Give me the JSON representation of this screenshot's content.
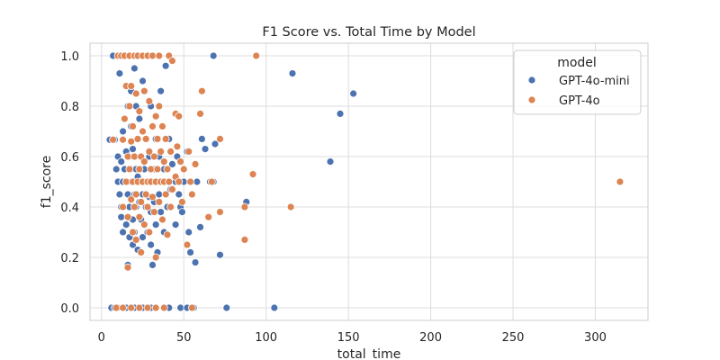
{
  "chart_data": {
    "type": "scatter",
    "title": "F1 Score vs. Total Time by Model",
    "xlabel": "total_time",
    "ylabel": "f1_score",
    "xlim": [
      -7,
      332
    ],
    "ylim": [
      -0.05,
      1.05
    ],
    "xticks": [
      "0",
      "50",
      "100",
      "150",
      "200",
      "250",
      "300"
    ],
    "yticks": [
      "0.0",
      "0.2",
      "0.4",
      "0.6",
      "0.8",
      "1.0"
    ],
    "grid": true,
    "legend": {
      "title": "model",
      "placement": "top-right"
    },
    "series": [
      {
        "name": "GPT-4o-mini",
        "color": "#4c72b0",
        "points": [
          [
            5,
            0.667
          ],
          [
            7,
            1.0
          ],
          [
            8,
            0.667
          ],
          [
            9,
            0.55
          ],
          [
            10,
            0.5
          ],
          [
            10,
            0.6
          ],
          [
            11,
            0.45
          ],
          [
            11,
            0.93
          ],
          [
            12,
            0.58
          ],
          [
            12,
            0.4
          ],
          [
            12,
            0.36
          ],
          [
            13,
            0.3
          ],
          [
            13,
            0.5
          ],
          [
            13,
            0.7
          ],
          [
            14,
            0.55
          ],
          [
            14,
            0.75
          ],
          [
            15,
            0.5
          ],
          [
            15,
            0.33
          ],
          [
            15,
            0.62
          ],
          [
            16,
            0.17
          ],
          [
            16,
            0.45
          ],
          [
            16,
            0.8
          ],
          [
            17,
            0.4
          ],
          [
            17,
            0.6
          ],
          [
            17,
            0.28
          ],
          [
            18,
            0.5
          ],
          [
            18,
            0.55
          ],
          [
            18,
            0.72
          ],
          [
            18,
            0.86
          ],
          [
            19,
            0.35
          ],
          [
            19,
            0.63
          ],
          [
            19,
            0.25
          ],
          [
            20,
            0.45
          ],
          [
            20,
            0.5
          ],
          [
            20,
            0.3
          ],
          [
            20,
            0.95
          ],
          [
            21,
            0.55
          ],
          [
            21,
            0.8
          ],
          [
            21,
            0.4
          ],
          [
            22,
            0.23
          ],
          [
            22,
            0.52
          ],
          [
            22,
            0.67
          ],
          [
            23,
            0.5
          ],
          [
            23,
            0.42
          ],
          [
            23,
            0.75
          ],
          [
            24,
            0.35
          ],
          [
            24,
            0.6
          ],
          [
            25,
            0.45
          ],
          [
            25,
            0.28
          ],
          [
            25,
            0.9
          ],
          [
            26,
            0.5
          ],
          [
            26,
            0.55
          ],
          [
            27,
            0.4
          ],
          [
            27,
            0.67
          ],
          [
            28,
            0.3
          ],
          [
            28,
            0.5
          ],
          [
            29,
            0.44
          ],
          [
            29,
            0.6
          ],
          [
            30,
            0.38
          ],
          [
            30,
            0.25
          ],
          [
            30,
            0.8
          ],
          [
            31,
            0.5
          ],
          [
            31,
            0.17
          ],
          [
            32,
            0.55
          ],
          [
            32,
            0.42
          ],
          [
            33,
            0.33
          ],
          [
            33,
            0.67
          ],
          [
            34,
            0.5
          ],
          [
            34,
            0.22
          ],
          [
            35,
            0.45
          ],
          [
            35,
            0.6
          ],
          [
            36,
            0.86
          ],
          [
            36,
            0.38
          ],
          [
            37,
            0.5
          ],
          [
            38,
            0.55
          ],
          [
            38,
            0.3
          ],
          [
            39,
            0.96
          ],
          [
            40,
            0.5
          ],
          [
            40,
            0.4
          ],
          [
            41,
            0.67
          ],
          [
            42,
            0.47
          ],
          [
            43,
            0.57
          ],
          [
            45,
            0.5
          ],
          [
            45,
            0.33
          ],
          [
            46,
            0.6
          ],
          [
            47,
            0.45
          ],
          [
            48,
            0.4
          ],
          [
            49,
            0.38
          ],
          [
            50,
            0.5
          ],
          [
            52,
            0.62
          ],
          [
            53,
            0.3
          ],
          [
            54,
            0.22
          ],
          [
            55,
            0.45
          ],
          [
            57,
            0.18
          ],
          [
            58,
            0.5
          ],
          [
            60,
            0.32
          ],
          [
            61,
            0.67
          ],
          [
            63,
            0.63
          ],
          [
            66,
            0.5
          ],
          [
            68,
            0.5
          ],
          [
            69,
            0.65
          ],
          [
            72,
            0.21
          ],
          [
            88,
            0.42
          ],
          [
            6,
            0.0
          ],
          [
            8,
            0.0
          ],
          [
            10,
            0.0
          ],
          [
            15,
            0.0
          ],
          [
            20,
            0.0
          ],
          [
            25,
            0.0
          ],
          [
            30,
            0.0
          ],
          [
            41,
            0.0
          ],
          [
            48,
            0.0
          ],
          [
            52,
            0.0
          ],
          [
            56,
            0.0
          ],
          [
            68,
            1.0
          ],
          [
            76,
            0.0
          ],
          [
            105,
            0.0
          ],
          [
            116,
            0.93
          ],
          [
            139,
            0.58
          ],
          [
            145,
            0.77
          ],
          [
            153,
            0.85
          ]
        ]
      },
      {
        "name": "GPT-4o",
        "color": "#dd8452",
        "points": [
          [
            7,
            0.667
          ],
          [
            10,
            1.0
          ],
          [
            12,
            1.0
          ],
          [
            13,
            0.4
          ],
          [
            13,
            0.667
          ],
          [
            14,
            0.75
          ],
          [
            14,
            1.0
          ],
          [
            15,
            0.5
          ],
          [
            15,
            0.88
          ],
          [
            16,
            0.36
          ],
          [
            16,
            0.6
          ],
          [
            16,
            0.16
          ],
          [
            17,
            0.55
          ],
          [
            17,
            0.8
          ],
          [
            17,
            1.0
          ],
          [
            18,
            0.43
          ],
          [
            18,
            0.66
          ],
          [
            18,
            0.88
          ],
          [
            19,
            0.3
          ],
          [
            19,
            0.5
          ],
          [
            19,
            0.72
          ],
          [
            20,
            0.4
          ],
          [
            20,
            0.6
          ],
          [
            20,
            1.0
          ],
          [
            21,
            0.45
          ],
          [
            21,
            0.85
          ],
          [
            21,
            0.27
          ],
          [
            22,
            0.5
          ],
          [
            22,
            0.67
          ],
          [
            22,
            1.0
          ],
          [
            23,
            0.36
          ],
          [
            23,
            0.55
          ],
          [
            23,
            0.78
          ],
          [
            24,
            0.42
          ],
          [
            24,
            0.6
          ],
          [
            24,
            0.22
          ],
          [
            25,
            0.5
          ],
          [
            25,
            0.7
          ],
          [
            25,
            1.0
          ],
          [
            26,
            0.33
          ],
          [
            26,
            0.58
          ],
          [
            26,
            0.86
          ],
          [
            27,
            0.45
          ],
          [
            27,
            0.67
          ],
          [
            28,
            0.5
          ],
          [
            28,
            0.4
          ],
          [
            28,
            1.0
          ],
          [
            29,
            0.62
          ],
          [
            29,
            0.82
          ],
          [
            29,
            0.3
          ],
          [
            30,
            0.5
          ],
          [
            30,
            0.55
          ],
          [
            31,
            0.44
          ],
          [
            31,
            0.72
          ],
          [
            31,
            1.0
          ],
          [
            32,
            0.38
          ],
          [
            32,
            0.6
          ],
          [
            33,
            0.5
          ],
          [
            33,
            0.76
          ],
          [
            33,
            0.2
          ],
          [
            34,
            0.55
          ],
          [
            34,
            0.67
          ],
          [
            35,
            0.42
          ],
          [
            35,
            0.8
          ],
          [
            35,
            1.0
          ],
          [
            36,
            0.5
          ],
          [
            36,
            0.62
          ],
          [
            37,
            0.35
          ],
          [
            37,
            0.72
          ],
          [
            38,
            0.5
          ],
          [
            38,
            0.58
          ],
          [
            39,
            0.45
          ],
          [
            39,
            0.67
          ],
          [
            40,
            0.29
          ],
          [
            40,
            0.55
          ],
          [
            41,
            0.5
          ],
          [
            41,
            1.0
          ],
          [
            42,
            0.4
          ],
          [
            42,
            0.62
          ],
          [
            43,
            0.47
          ],
          [
            43,
            0.98
          ],
          [
            45,
            0.52
          ],
          [
            45,
            0.77
          ],
          [
            46,
            0.64
          ],
          [
            47,
            0.5
          ],
          [
            47,
            0.76
          ],
          [
            48,
            0.58
          ],
          [
            49,
            0.42
          ],
          [
            50,
            0.55
          ],
          [
            52,
            0.25
          ],
          [
            53,
            0.62
          ],
          [
            54,
            0.5
          ],
          [
            55,
            0.45
          ],
          [
            57,
            0.57
          ],
          [
            60,
            0.77
          ],
          [
            61,
            0.86
          ],
          [
            65,
            0.36
          ],
          [
            67,
            0.5
          ],
          [
            72,
            0.38
          ],
          [
            72,
            0.67
          ],
          [
            87,
            0.4
          ],
          [
            87,
            0.27
          ],
          [
            92,
            0.53
          ],
          [
            94,
            1.0
          ],
          [
            115,
            0.4
          ],
          [
            315,
            0.5
          ],
          [
            9,
            0.0
          ],
          [
            13,
            0.0
          ],
          [
            18,
            0.0
          ],
          [
            23,
            0.0
          ],
          [
            28,
            0.0
          ],
          [
            33,
            0.0
          ],
          [
            38,
            0.0
          ],
          [
            55,
            0.0
          ]
        ]
      }
    ]
  }
}
